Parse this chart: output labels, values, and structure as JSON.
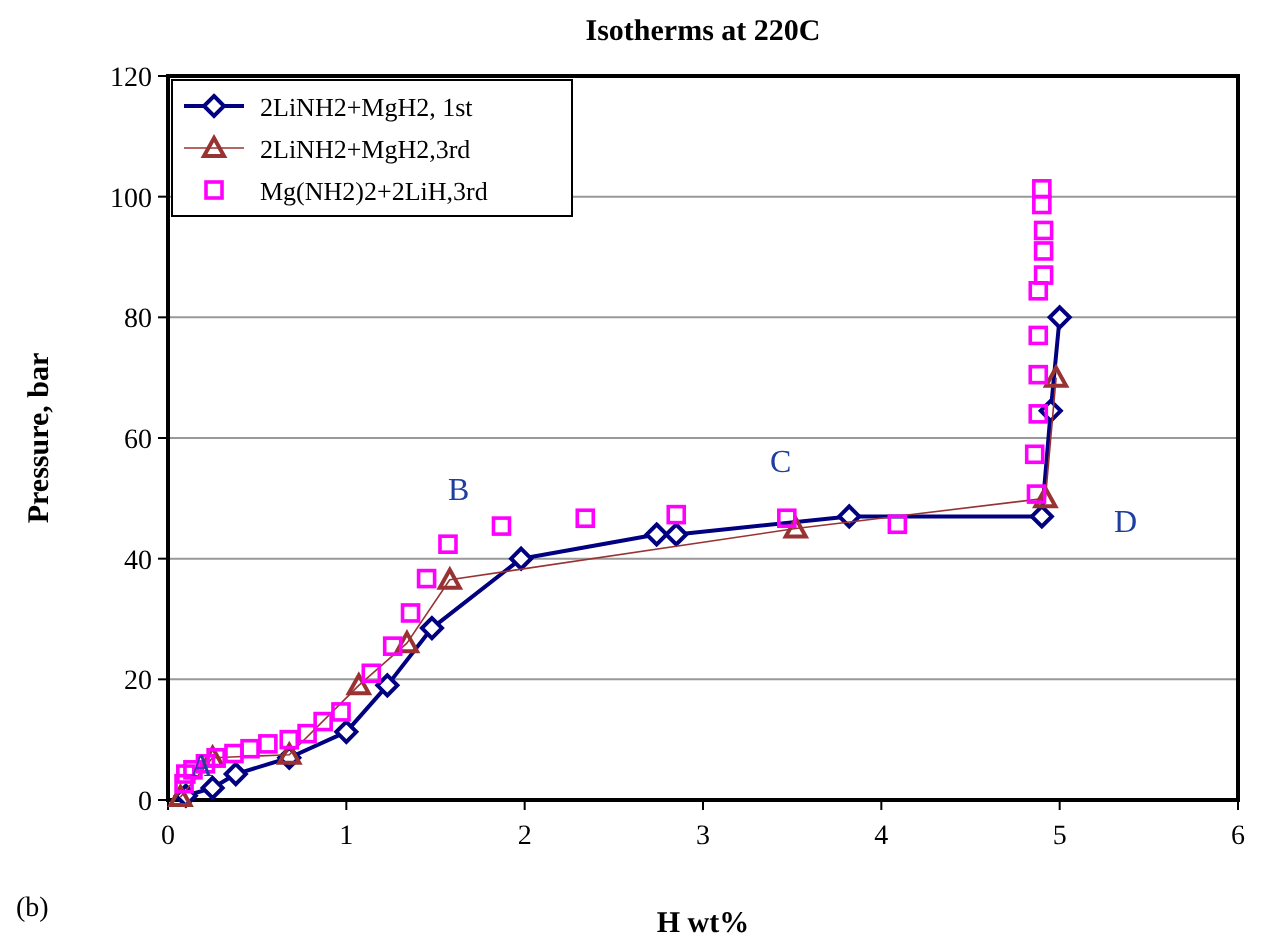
{
  "chart_data": {
    "type": "line",
    "title": "Isotherms at 220C",
    "xlabel": "H wt%",
    "ylabel": "Pressure, bar",
    "xlim": [
      0,
      6
    ],
    "xticks": [
      0,
      1,
      2,
      3,
      4,
      5,
      6
    ],
    "ylim": [
      0,
      120
    ],
    "yticks": [
      0,
      20,
      40,
      60,
      80,
      100,
      120
    ],
    "grid": "y",
    "legend": "top left",
    "series": [
      {
        "name": "2LiNH2+MgH2, 1st",
        "color": "#000080",
        "marker": "diamond",
        "line_style": "solid",
        "x": [
          0.1,
          0.25,
          0.38,
          0.68,
          1.0,
          1.23,
          1.48,
          1.98,
          2.74,
          2.85,
          3.82,
          4.9,
          4.95,
          5.0
        ],
        "values": [
          0.7,
          2,
          4.3,
          7,
          11.3,
          19,
          28.5,
          40,
          44,
          44,
          47,
          47,
          64.5,
          80
        ]
      },
      {
        "name": "2LiNH2+MgH2,3rd",
        "color": "#993333",
        "marker": "triangle",
        "line_style": "solid",
        "x": [
          0.07,
          0.25,
          0.68,
          1.07,
          1.34,
          1.58,
          3.52,
          4.92,
          4.98
        ],
        "values": [
          0.5,
          7,
          7.5,
          19,
          26,
          36.5,
          45,
          50,
          70
        ]
      },
      {
        "name": "Mg(NH2)2+2LiH,3rd",
        "type": "scatter",
        "color": "#ff00ff",
        "marker": "square",
        "x": [
          0.09,
          0.1,
          0.14,
          0.21,
          0.27,
          0.37,
          0.46,
          0.56,
          0.68,
          0.78,
          0.87,
          0.97,
          1.14,
          1.26,
          1.36,
          1.45,
          1.57,
          1.87,
          2.34,
          2.85,
          3.47,
          4.09,
          4.87,
          4.86,
          4.88,
          4.88,
          4.88,
          4.88,
          4.91,
          4.91,
          4.91,
          4.9,
          4.9
        ],
        "values": [
          2.7,
          4.3,
          5,
          6,
          7,
          7.7,
          8.5,
          9.3,
          10,
          11,
          13,
          14.6,
          21,
          25.5,
          31,
          36.7,
          42.4,
          45.4,
          46.7,
          47.3,
          46.7,
          45.7,
          50.7,
          57.3,
          64,
          70.5,
          77,
          84.4,
          87,
          91,
          94.4,
          98.7,
          101.3
        ]
      }
    ],
    "annotations": [
      "A",
      "B",
      "C",
      "D",
      "(b)"
    ]
  }
}
